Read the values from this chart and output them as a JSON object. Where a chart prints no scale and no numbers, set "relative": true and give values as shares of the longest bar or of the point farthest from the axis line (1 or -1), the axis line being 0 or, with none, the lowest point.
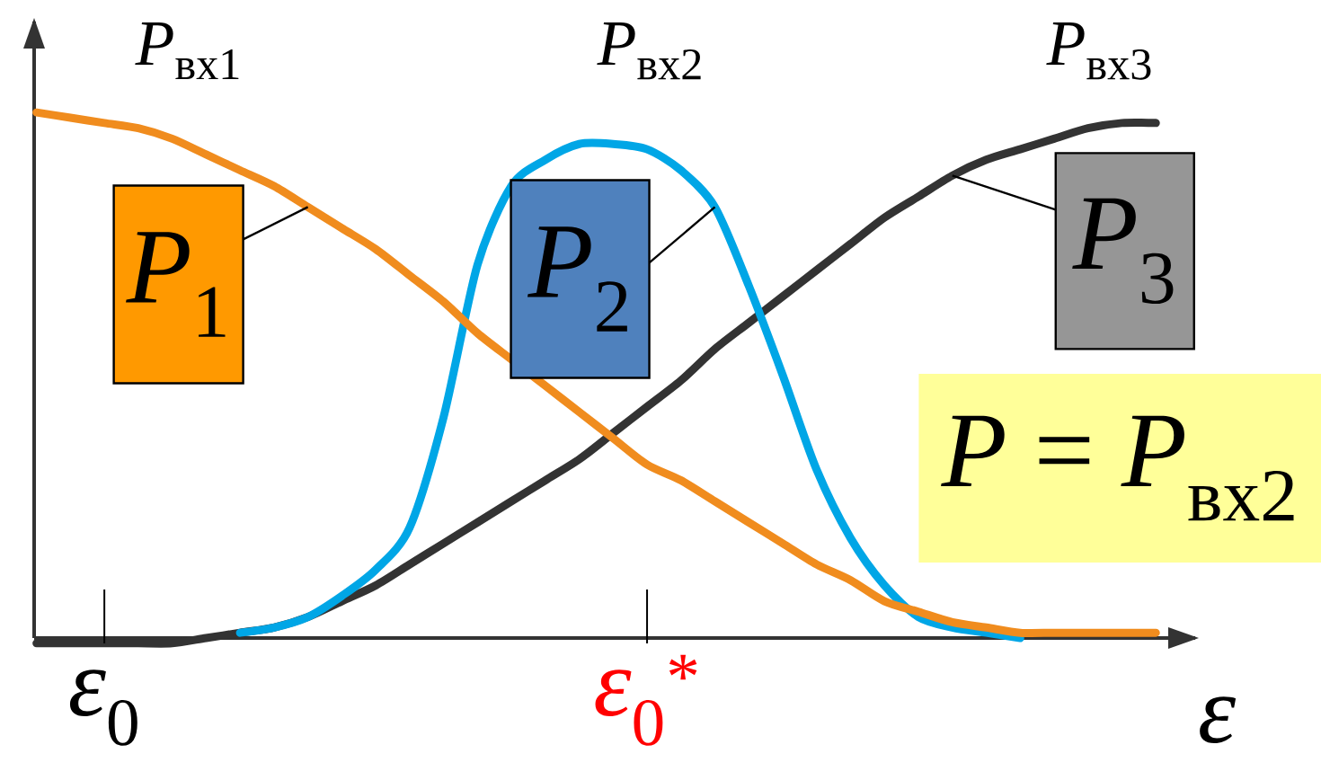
{
  "chart_data": {
    "type": "line",
    "relative": true,
    "xlabel": "ε",
    "categories": [
      null,
      null,
      "*ε*$_{0}$",
      null,
      null,
      null,
      null,
      null,
      null,
      null,
      null,
      null,
      null,
      null,
      null,
      null,
      null,
      null,
      "*ε*$_{0}$$^{*}$",
      null,
      null,
      null,
      null,
      null,
      null,
      null,
      null,
      null,
      null,
      null,
      null,
      null,
      null,
      null
    ],
    "series": [
      {
        "name": "*P*$_{1}$",
        "color": "#f08c1e",
        "values": [
          1.0,
          0.99,
          0.98,
          0.97,
          0.95,
          0.92,
          0.89,
          0.86,
          0.82,
          0.78,
          0.74,
          0.69,
          0.64,
          0.58,
          0.53,
          0.48,
          0.43,
          0.38,
          0.33,
          0.3,
          0.26,
          0.22,
          0.18,
          0.14,
          0.11,
          0.07,
          0.05,
          0.03,
          0.02,
          0.01,
          0.01,
          0.01,
          0.01,
          0.01
        ]
      },
      {
        "name": "*P*$_{2}$",
        "color": "#00a6e6",
        "values": [
          null,
          null,
          null,
          null,
          null,
          null,
          0.01,
          0.02,
          0.04,
          0.08,
          0.13,
          0.21,
          0.42,
          0.71,
          0.86,
          0.91,
          0.94,
          0.94,
          0.93,
          0.89,
          0.82,
          0.67,
          0.5,
          0.32,
          0.19,
          0.1,
          0.04,
          0.02,
          0.01,
          0.0,
          null,
          null,
          null,
          null
        ]
      },
      {
        "name": "*P*$_{3}$",
        "color": "#333333",
        "values": [
          -0.01,
          -0.01,
          -0.01,
          -0.01,
          -0.01,
          0.0,
          0.01,
          0.02,
          0.04,
          0.07,
          0.1,
          0.14,
          0.18,
          0.22,
          0.26,
          0.3,
          0.34,
          0.39,
          0.44,
          0.49,
          0.55,
          0.6,
          0.65,
          0.7,
          0.75,
          0.8,
          0.84,
          0.88,
          0.91,
          0.93,
          0.95,
          0.97,
          0.98,
          0.98
        ]
      }
    ],
    "annotations": [
      "*P*$_{вх1}$",
      "*P*$_{вх2}$",
      "*P*$_{вх3}$",
      "*P* = *P*$_{вх2}$"
    ]
  }
}
